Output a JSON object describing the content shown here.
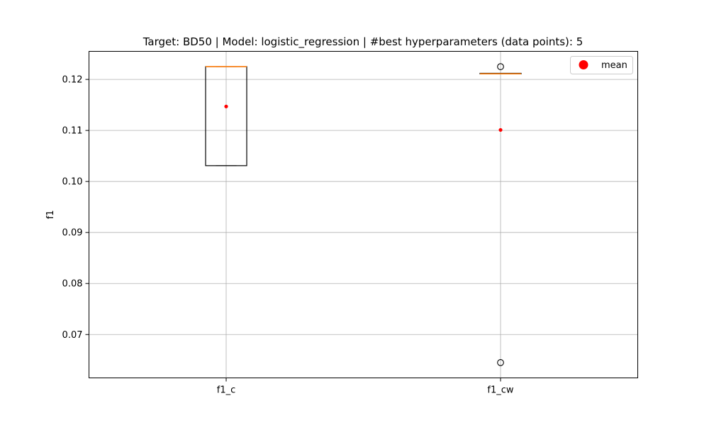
{
  "chart_data": {
    "type": "box",
    "title": "Target: BD50 | Model: logistic_regression | #best hyperparameters (data points): 5",
    "xlabel": "",
    "ylabel": "f1",
    "ylim": [
      0.0615,
      0.1255
    ],
    "yticks": [
      "0.07",
      "0.08",
      "0.09",
      "0.10",
      "0.11",
      "0.12"
    ],
    "grid": true,
    "legend": {
      "position": "upper right",
      "entries": [
        {
          "label": "mean",
          "color": "#ff0000",
          "marker": "circle"
        }
      ]
    },
    "categories": [
      "f1_c",
      "f1_cw"
    ],
    "boxes": [
      {
        "name": "f1_c",
        "whisker_low": 0.1031,
        "q1": 0.1031,
        "median": 0.1225,
        "q3": 0.1225,
        "whisker_high": 0.1225,
        "mean": 0.1147,
        "outliers": []
      },
      {
        "name": "f1_cw",
        "whisker_low": 0.1211,
        "q1": 0.1211,
        "median": 0.1211,
        "q3": 0.1212,
        "whisker_high": 0.1212,
        "mean": 0.1101,
        "outliers": [
          0.1225,
          0.0645
        ]
      }
    ],
    "colors": {
      "box": "#000000",
      "median": "#ff7f0e",
      "mean": "#ff0000",
      "grid": "#b0b0b0"
    }
  }
}
